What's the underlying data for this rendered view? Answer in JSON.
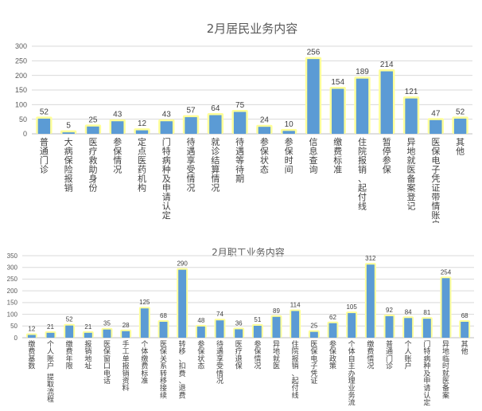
{
  "colors": {
    "bar": "#5B9BD5",
    "glow": "#FFFF99",
    "grid": "#D9D9D9",
    "axis": "#BFBFBF",
    "text": "#595959"
  },
  "chart_data": [
    {
      "type": "bar",
      "title": "2月居民业务内容",
      "xlabel": "",
      "ylabel": "",
      "ylim": [
        0,
        300
      ],
      "yticks": [
        0,
        50,
        100,
        150,
        200,
        250,
        300
      ],
      "grid": true,
      "legend": "none",
      "categories": [
        "普通门诊",
        "大病保险报销",
        "医疗救助身份",
        "参保情况",
        "定点医药机构",
        "门特病种及申请认定",
        "待遇享受情况",
        "就诊结算情况",
        "待遇等待期",
        "参保状态",
        "参保时间",
        "信息查询",
        "缴费标准",
        "住院报销、起付线",
        "暂停参保",
        "异地就医备案登记",
        "医保电子凭证带情账户",
        "其他"
      ],
      "values": [
        52,
        5,
        25,
        43,
        12,
        43,
        57,
        64,
        75,
        24,
        10,
        256,
        154,
        189,
        214,
        121,
        47,
        52
      ]
    },
    {
      "type": "bar",
      "title": "2月职工业务内容",
      "xlabel": "",
      "ylabel": "",
      "ylim": [
        0,
        350
      ],
      "yticks": [
        0,
        50,
        100,
        150,
        200,
        250,
        300,
        350
      ],
      "grid": true,
      "legend": "none",
      "categories": [
        "缴费基数",
        "个人账户 提取流程",
        "缴费年限",
        "报销地址",
        "医保窗口电话",
        "手工单报销资料",
        "个体缴费标准",
        "医保关系转移接续",
        "转移、扣费、退费",
        "参保状态",
        "待遇享受情况",
        "医疗退保",
        "参保情况",
        "异地就医",
        "住院报销、起付线",
        "医保电子凭证",
        "参保政策",
        "个体自主办理业务流",
        "缴费情况",
        "普通门诊",
        "个人账户",
        "门特病种及申请认定",
        "异地临时就医备案",
        "其他"
      ],
      "values": [
        12,
        21,
        52,
        21,
        35,
        28,
        125,
        68,
        290,
        48,
        74,
        36,
        51,
        89,
        114,
        25,
        62,
        105,
        312,
        92,
        84,
        81,
        254,
        68
      ]
    }
  ]
}
